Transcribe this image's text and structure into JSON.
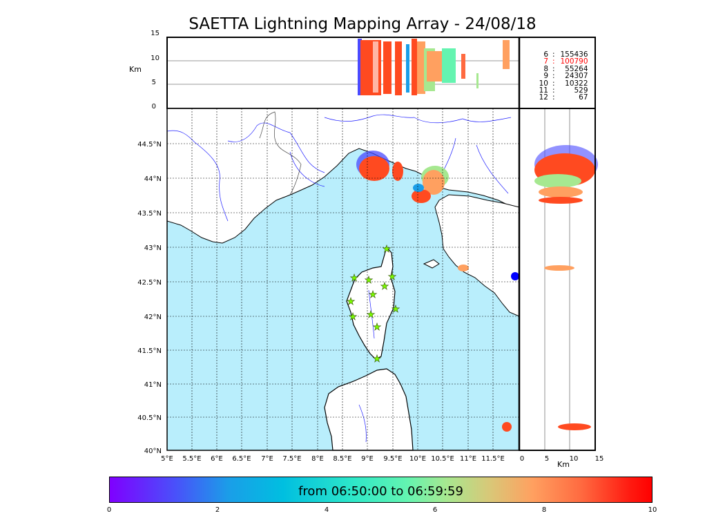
{
  "title": "SAETTA Lightning Mapping Array - 24/08/18",
  "alt_panel": {
    "ylabel": "Km",
    "yticks": [
      "15",
      "10",
      "5",
      "0"
    ]
  },
  "side_panel": {
    "xlabel": "Km",
    "xticks": [
      "0",
      "5",
      "10",
      "15"
    ]
  },
  "map": {
    "lat_ticks": [
      "44.5°N",
      "44°N",
      "43.5°N",
      "43°N",
      "42.5°N",
      "42°N",
      "41.5°N",
      "41°N",
      "40.5°N",
      "40°N"
    ],
    "lon_ticks": [
      "5°E",
      "5.5°E",
      "6°E",
      "6.5°E",
      "7°E",
      "7.5°E",
      "8°E",
      "8.5°E",
      "9°E",
      "9.5°E",
      "10°E",
      "10.5°E",
      "11°E",
      "11.5°E"
    ],
    "colors": {
      "sea": "#b9eefc",
      "land": "#ffffff",
      "rivers": "#2020ff",
      "stations": "#7cfc00"
    },
    "station_icon": "star-icon"
  },
  "legend": [
    {
      "key": "6",
      "value": "155436",
      "color": "#000000"
    },
    {
      "key": "7",
      "value": "100790",
      "color": "#ff0000"
    },
    {
      "key": "8",
      "value": "55264",
      "color": "#000000"
    },
    {
      "key": "9",
      "value": "24307",
      "color": "#000000"
    },
    {
      "key": "10",
      "value": "10322",
      "color": "#000000"
    },
    {
      "key": "11",
      "value": "529",
      "color": "#000000"
    },
    {
      "key": "12",
      "value": "67",
      "color": "#000000"
    }
  ],
  "colorbar": {
    "label": "from 06:50:00 to 06:59:59",
    "ticks": [
      "0",
      "2",
      "4",
      "6",
      "8",
      "10"
    ],
    "colormap": "rainbow"
  }
}
